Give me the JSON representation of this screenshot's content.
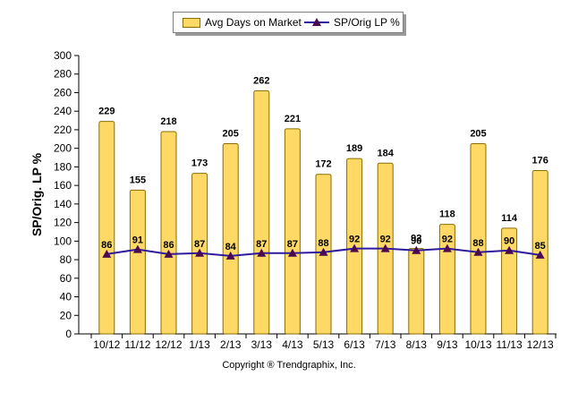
{
  "legend": {
    "bar_label": "Avg Days on Market",
    "line_label": "SP/Orig LP %"
  },
  "footer": {
    "copyright": "Copyright ® Trendgraphix, Inc."
  },
  "colors": {
    "bar_fill": "#ffd966",
    "bar_stroke": "#8a6d00",
    "line": "#2e1a9e",
    "marker": "#4b0a4f"
  },
  "chart_data": {
    "type": "bar",
    "title": "",
    "xlabel": "",
    "ylabel": "SP/Orig. LP %",
    "ylim": [
      0,
      300
    ],
    "yticks": [
      0,
      20,
      40,
      60,
      80,
      100,
      120,
      140,
      160,
      180,
      200,
      220,
      240,
      260,
      280,
      300
    ],
    "legend_position": "top-center",
    "categories": [
      "10/12",
      "11/12",
      "12/12",
      "1/13",
      "2/13",
      "3/13",
      "4/13",
      "5/13",
      "6/13",
      "7/13",
      "8/13",
      "9/13",
      "10/13",
      "11/13",
      "12/13"
    ],
    "series": [
      {
        "name": "Avg Days on Market",
        "kind": "bar",
        "values": [
          229,
          155,
          218,
          173,
          205,
          262,
          221,
          172,
          189,
          184,
          92,
          118,
          205,
          114,
          176
        ]
      },
      {
        "name": "SP/Orig LP %",
        "kind": "line",
        "values": [
          86,
          91,
          86,
          87,
          84,
          87,
          87,
          88,
          92,
          92,
          90,
          92,
          88,
          90,
          85
        ]
      }
    ]
  }
}
